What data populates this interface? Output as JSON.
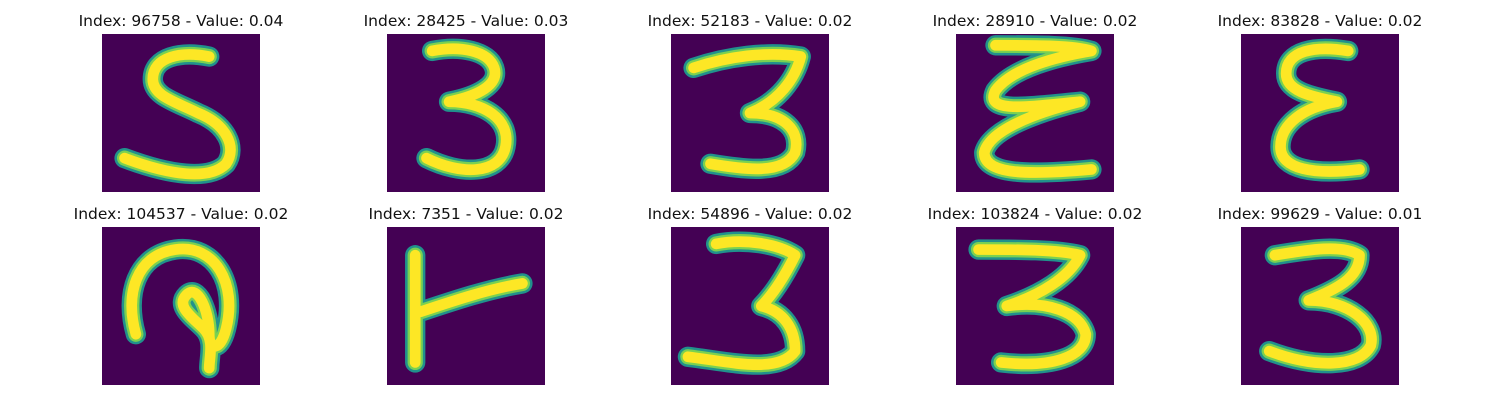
{
  "colors": {
    "background": "#440154",
    "stroke_edge": "#21918c",
    "stroke_mid": "#7ad151",
    "stroke_core": "#fde725"
  },
  "panels": [
    {
      "title": "Index: 96758 - Value: 0.04",
      "glyph": "digit-5"
    },
    {
      "title": "Index: 28425 - Value: 0.03",
      "glyph": "digit-3"
    },
    {
      "title": "Index: 52183 - Value: 0.02",
      "glyph": "digit-3"
    },
    {
      "title": "Index: 28910 - Value: 0.02",
      "glyph": "loopy-E"
    },
    {
      "title": "Index: 83828 - Value: 0.02",
      "glyph": "reversed-3"
    },
    {
      "title": "Index: 104537 - Value: 0.02",
      "glyph": "loop-shape"
    },
    {
      "title": "Index: 7351 - Value: 0.02",
      "glyph": "T-shape"
    },
    {
      "title": "Index: 54896 - Value: 0.02",
      "glyph": "digit-3"
    },
    {
      "title": "Index: 103824 - Value: 0.02",
      "glyph": "digit-3"
    },
    {
      "title": "Index: 99629 - Value: 0.01",
      "glyph": "digit-3"
    }
  ]
}
